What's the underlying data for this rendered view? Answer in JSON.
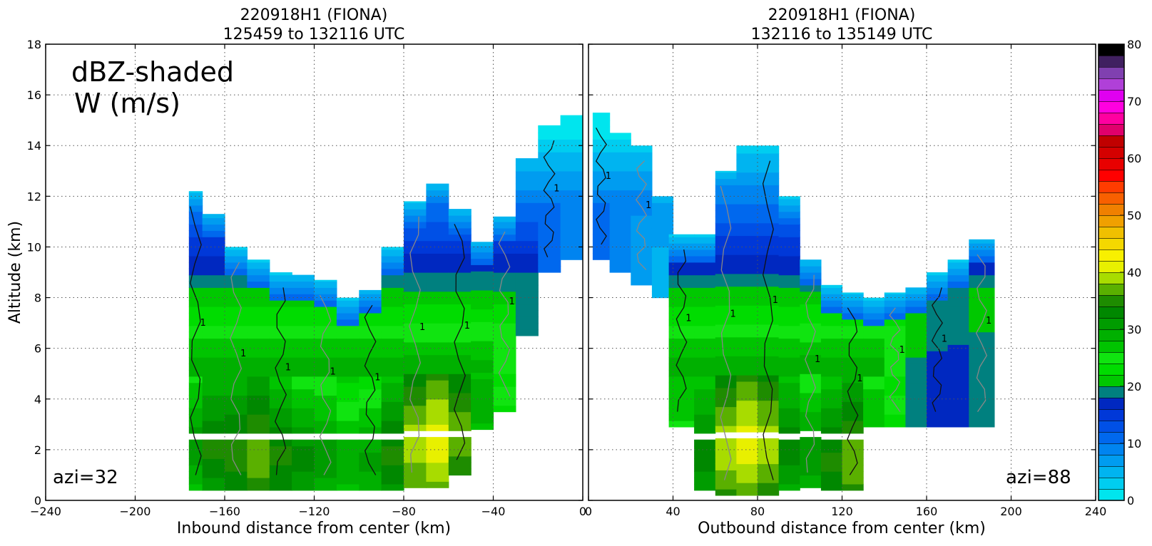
{
  "chart_data": [
    {
      "type": "cross-section",
      "title_line1": "220918H1 (FIONA)",
      "title_line2": "125459 to 132116 UTC",
      "xlabel": "Inbound distance from center (km)",
      "ylabel": "Altitude (km)",
      "xlim": [
        -240,
        0
      ],
      "ylim": [
        0,
        18
      ],
      "xticks": [
        "−240",
        "−200",
        "−160",
        "−120",
        "−80",
        "−40",
        "0"
      ],
      "xtick_values": [
        -240,
        -200,
        -160,
        -120,
        -80,
        -40,
        0
      ],
      "yticks": [
        "0",
        "2",
        "4",
        "6",
        "8",
        "10",
        "12",
        "14",
        "16",
        "18"
      ],
      "ytick_values": [
        0,
        2,
        4,
        6,
        8,
        10,
        12,
        14,
        16,
        18
      ],
      "grid": true,
      "annotation_line1": "dBZ-shaded",
      "annotation_line2": "W (m/s)",
      "azi_label": "azi=32",
      "shading_field": "reflectivity (dBZ)",
      "contour_field": "vertical velocity W (m/s)",
      "contour_label": "1",
      "missing_data_band_km": [
        2.4,
        2.7
      ],
      "reflectivity_columns": [
        {
          "x": [
            -176,
            -170
          ],
          "top": 12.2,
          "bottom": 0.4,
          "max_dbz": 32
        },
        {
          "x": [
            -170,
            -160
          ],
          "top": 11.3,
          "bottom": 0.4,
          "max_dbz": 35
        },
        {
          "x": [
            -160,
            -150
          ],
          "top": 10.0,
          "bottom": 0.4,
          "max_dbz": 36
        },
        {
          "x": [
            -150,
            -140
          ],
          "top": 9.5,
          "bottom": 0.4,
          "max_dbz": 38
        },
        {
          "x": [
            -140,
            -130
          ],
          "top": 9.0,
          "bottom": 0.4,
          "max_dbz": 35
        },
        {
          "x": [
            -130,
            -120
          ],
          "top": 8.9,
          "bottom": 0.4,
          "max_dbz": 33
        },
        {
          "x": [
            -120,
            -110
          ],
          "top": 8.7,
          "bottom": 0.4,
          "max_dbz": 32
        },
        {
          "x": [
            -110,
            -100
          ],
          "top": 8.0,
          "bottom": 0.4,
          "max_dbz": 30
        },
        {
          "x": [
            -100,
            -90
          ],
          "top": 8.3,
          "bottom": 0.4,
          "max_dbz": 31
        },
        {
          "x": [
            -90,
            -80
          ],
          "top": 10.0,
          "bottom": 0.4,
          "max_dbz": 35
        },
        {
          "x": [
            -80,
            -70
          ],
          "top": 11.8,
          "bottom": 0.5,
          "max_dbz": 40
        },
        {
          "x": [
            -70,
            -60
          ],
          "top": 12.5,
          "bottom": 0.5,
          "max_dbz": 42
        },
        {
          "x": [
            -60,
            -50
          ],
          "top": 11.5,
          "bottom": 1.0,
          "max_dbz": 38
        },
        {
          "x": [
            -50,
            -40
          ],
          "top": 10.2,
          "bottom": 2.8,
          "max_dbz": 30
        },
        {
          "x": [
            -40,
            -30
          ],
          "top": 11.2,
          "bottom": 3.5,
          "max_dbz": 25
        },
        {
          "x": [
            -30,
            -20
          ],
          "top": 13.5,
          "bottom": 6.5,
          "max_dbz": 22
        },
        {
          "x": [
            -20,
            -10
          ],
          "top": 14.8,
          "bottom": 9.0,
          "max_dbz": 14
        },
        {
          "x": [
            -10,
            0
          ],
          "top": 15.2,
          "bottom": 9.5,
          "max_dbz": 12
        }
      ]
    },
    {
      "type": "cross-section",
      "title_line1": "220918H1 (FIONA)",
      "title_line2": "132116 to 135149 UTC",
      "xlabel": "Outbound distance from center (km)",
      "ylabel": "",
      "xlim": [
        0,
        240
      ],
      "ylim": [
        0,
        18
      ],
      "xticks": [
        "0",
        "40",
        "80",
        "120",
        "160",
        "200",
        "240"
      ],
      "xtick_values": [
        0,
        40,
        80,
        120,
        160,
        200,
        240
      ],
      "grid": true,
      "azi_label": "azi=88",
      "shading_field": "reflectivity (dBZ)",
      "contour_field": "vertical velocity W (m/s)",
      "contour_label": "1",
      "missing_data_band_km": [
        2.4,
        2.7
      ],
      "reflectivity_columns": [
        {
          "x": [
            2,
            10
          ],
          "top": 15.3,
          "bottom": 9.5,
          "max_dbz": 14
        },
        {
          "x": [
            10,
            20
          ],
          "top": 14.5,
          "bottom": 9.0,
          "max_dbz": 12
        },
        {
          "x": [
            20,
            30
          ],
          "top": 14.0,
          "bottom": 8.5,
          "max_dbz": 10
        },
        {
          "x": [
            30,
            40
          ],
          "top": 12.0,
          "bottom": 8.0,
          "max_dbz": 8
        },
        {
          "x": [
            38,
            50
          ],
          "top": 10.5,
          "bottom": 2.9,
          "max_dbz": 28
        },
        {
          "x": [
            50,
            60
          ],
          "top": 10.5,
          "bottom": 0.4,
          "max_dbz": 34
        },
        {
          "x": [
            60,
            70
          ],
          "top": 13.0,
          "bottom": 0.2,
          "max_dbz": 40
        },
        {
          "x": [
            70,
            80
          ],
          "top": 14.0,
          "bottom": 0.2,
          "max_dbz": 42
        },
        {
          "x": [
            80,
            90
          ],
          "top": 14.0,
          "bottom": 0.2,
          "max_dbz": 40
        },
        {
          "x": [
            90,
            100
          ],
          "top": 12.0,
          "bottom": 0.4,
          "max_dbz": 34
        },
        {
          "x": [
            100,
            110
          ],
          "top": 9.5,
          "bottom": 0.5,
          "max_dbz": 32
        },
        {
          "x": [
            110,
            120
          ],
          "top": 8.5,
          "bottom": 0.4,
          "max_dbz": 35
        },
        {
          "x": [
            120,
            130
          ],
          "top": 8.2,
          "bottom": 0.4,
          "max_dbz": 38
        },
        {
          "x": [
            130,
            140
          ],
          "top": 8.0,
          "bottom": 2.9,
          "max_dbz": 28
        },
        {
          "x": [
            140,
            150
          ],
          "top": 8.2,
          "bottom": 2.9,
          "max_dbz": 25
        },
        {
          "x": [
            150,
            160
          ],
          "top": 8.4,
          "bottom": 2.9,
          "max_dbz": 22
        },
        {
          "x": [
            160,
            170
          ],
          "top": 9.0,
          "bottom": 2.9,
          "max_dbz": 20
        },
        {
          "x": [
            170,
            180
          ],
          "top": 9.5,
          "bottom": 2.9,
          "max_dbz": 20
        },
        {
          "x": [
            180,
            192
          ],
          "top": 10.3,
          "bottom": 2.9,
          "max_dbz": 22
        }
      ]
    }
  ],
  "colorbar": {
    "label_values": [
      "0",
      "10",
      "20",
      "30",
      "40",
      "50",
      "60",
      "70",
      "80"
    ],
    "vmin": 0,
    "vmax": 80,
    "levels": 40,
    "colors": [
      "#00e5ee",
      "#00cdf0",
      "#00b4f0",
      "#009cf0",
      "#0084f0",
      "#0068ee",
      "#0050e6",
      "#0038d8",
      "#0028c0",
      "#00807f",
      "#00c800",
      "#00dc00",
      "#10e410",
      "#00c400",
      "#00b000",
      "#009c00",
      "#008800",
      "#1e8c00",
      "#5ab000",
      "#a8dc00",
      "#e8f000",
      "#f8f000",
      "#f4d800",
      "#f0c000",
      "#f0a000",
      "#f08000",
      "#f86000",
      "#ff3c00",
      "#ff0000",
      "#e80000",
      "#d40000",
      "#c00000",
      "#e0006c",
      "#ff00a0",
      "#ff00e0",
      "#e000f0",
      "#b040d8",
      "#8040b0",
      "#402060",
      "#000000"
    ]
  }
}
